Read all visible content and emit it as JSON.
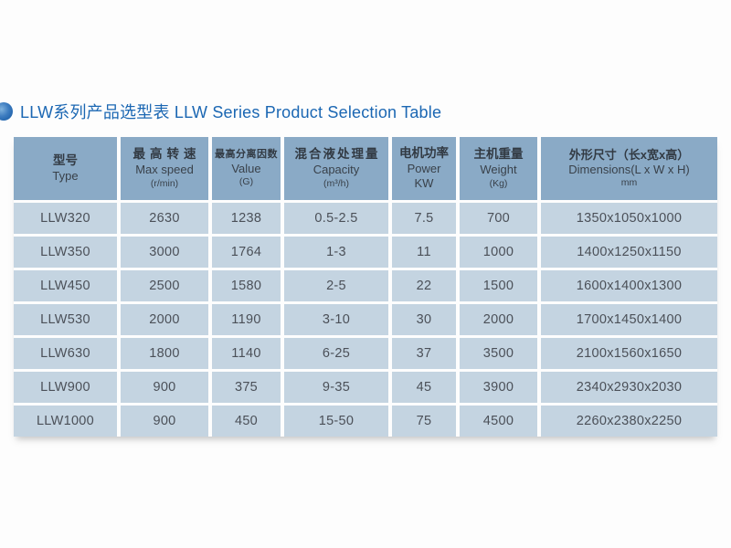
{
  "title": "LLW系列产品选型表 LLW Series Product Selection Table",
  "colors": {
    "title_blue": "#1b67b3",
    "header_bg": "#8aaac6",
    "row_bg": "#c4d4e1",
    "text_dark": "#39414a"
  },
  "table": {
    "columns": [
      {
        "zh": "型号",
        "en": "Type",
        "sub": ""
      },
      {
        "zh": "最高转速",
        "en": "Max speed",
        "sub": "(r/min)"
      },
      {
        "zh": "最高分离因数",
        "en": "Value",
        "sub": "(G)"
      },
      {
        "zh": "混合液处理量",
        "en": "Capacity",
        "sub": "(m³/h)"
      },
      {
        "zh": "电机功率",
        "en": "Power",
        "sub": "KW"
      },
      {
        "zh": "主机重量",
        "en": "Weight",
        "sub": "(Kg)"
      },
      {
        "zh": "外形尺寸（长x宽x高）",
        "en": "Dimensions(L x W x H)",
        "sub": "mm"
      }
    ],
    "rows": [
      [
        "LLW320",
        "2630",
        "1238",
        "0.5-2.5",
        "7.5",
        "700",
        "1350x1050x1000"
      ],
      [
        "LLW350",
        "3000",
        "1764",
        "1-3",
        "11",
        "1000",
        "1400x1250x1150"
      ],
      [
        "LLW450",
        "2500",
        "1580",
        "2-5",
        "22",
        "1500",
        "1600x1400x1300"
      ],
      [
        "LLW530",
        "2000",
        "1190",
        "3-10",
        "30",
        "2000",
        "1700x1450x1400"
      ],
      [
        "LLW630",
        "1800",
        "1140",
        "6-25",
        "37",
        "3500",
        "2100x1560x1650"
      ],
      [
        "LLW900",
        "900",
        "375",
        "9-35",
        "45",
        "3900",
        "2340x2930x2030"
      ],
      [
        "LLW1000",
        "900",
        "450",
        "15-50",
        "75",
        "4500",
        "2260x2380x2250"
      ]
    ]
  }
}
